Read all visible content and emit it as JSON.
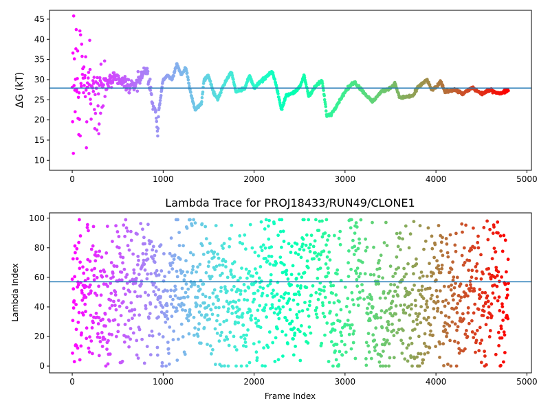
{
  "chart_data": [
    {
      "type": "scatter",
      "title": "",
      "xlabel": "",
      "ylabel": "ΔG (kT)",
      "xlim": [
        -250,
        5050
      ],
      "ylim": [
        7.5,
        47.2
      ],
      "xticks": [
        0,
        1000,
        2000,
        3000,
        4000,
        5000
      ],
      "yticks": [
        10,
        15,
        20,
        25,
        30,
        35,
        40,
        45
      ],
      "grid": false,
      "colormap": "rainbow",
      "hline": {
        "y": 27.9,
        "color": "#1f77b4"
      },
      "n_frames": 4800,
      "trend": [
        {
          "x": 0,
          "y": 28
        },
        {
          "x": 120,
          "y": 29
        },
        {
          "x": 300,
          "y": 29
        },
        {
          "x": 500,
          "y": 30
        },
        {
          "x": 650,
          "y": 28
        },
        {
          "x": 700,
          "y": 29
        },
        {
          "x": 760,
          "y": 31
        },
        {
          "x": 820,
          "y": 33
        },
        {
          "x": 860,
          "y": 27
        },
        {
          "x": 880,
          "y": 24
        },
        {
          "x": 920,
          "y": 22
        },
        {
          "x": 940,
          "y": 16
        },
        {
          "x": 950,
          "y": 22
        },
        {
          "x": 1000,
          "y": 30
        },
        {
          "x": 1050,
          "y": 31
        },
        {
          "x": 1100,
          "y": 30
        },
        {
          "x": 1150,
          "y": 34
        },
        {
          "x": 1200,
          "y": 31
        },
        {
          "x": 1250,
          "y": 33
        },
        {
          "x": 1300,
          "y": 27
        },
        {
          "x": 1350,
          "y": 22.5
        },
        {
          "x": 1420,
          "y": 24
        },
        {
          "x": 1450,
          "y": 30
        },
        {
          "x": 1500,
          "y": 31
        },
        {
          "x": 1550,
          "y": 27
        },
        {
          "x": 1600,
          "y": 25
        },
        {
          "x": 1650,
          "y": 28
        },
        {
          "x": 1700,
          "y": 30
        },
        {
          "x": 1750,
          "y": 32
        },
        {
          "x": 1800,
          "y": 27
        },
        {
          "x": 1900,
          "y": 28
        },
        {
          "x": 1950,
          "y": 31
        },
        {
          "x": 2000,
          "y": 28
        },
        {
          "x": 2100,
          "y": 30
        },
        {
          "x": 2200,
          "y": 32
        },
        {
          "x": 2250,
          "y": 28
        },
        {
          "x": 2300,
          "y": 22.5
        },
        {
          "x": 2350,
          "y": 26
        },
        {
          "x": 2450,
          "y": 27
        },
        {
          "x": 2500,
          "y": 28
        },
        {
          "x": 2550,
          "y": 31
        },
        {
          "x": 2600,
          "y": 26
        },
        {
          "x": 2700,
          "y": 29
        },
        {
          "x": 2750,
          "y": 29.5
        },
        {
          "x": 2800,
          "y": 21
        },
        {
          "x": 2850,
          "y": 21.5
        },
        {
          "x": 3000,
          "y": 27
        },
        {
          "x": 3100,
          "y": 29.5
        },
        {
          "x": 3200,
          "y": 27
        },
        {
          "x": 3300,
          "y": 24.5
        },
        {
          "x": 3400,
          "y": 27
        },
        {
          "x": 3500,
          "y": 28
        },
        {
          "x": 3550,
          "y": 29
        },
        {
          "x": 3600,
          "y": 25.5
        },
        {
          "x": 3750,
          "y": 26
        },
        {
          "x": 3800,
          "y": 28
        },
        {
          "x": 3900,
          "y": 30
        },
        {
          "x": 3950,
          "y": 27.5
        },
        {
          "x": 4000,
          "y": 28
        },
        {
          "x": 4050,
          "y": 29.5
        },
        {
          "x": 4100,
          "y": 27
        },
        {
          "x": 4200,
          "y": 27.5
        },
        {
          "x": 4300,
          "y": 26.5
        },
        {
          "x": 4400,
          "y": 28
        },
        {
          "x": 4500,
          "y": 26.5
        },
        {
          "x": 4600,
          "y": 27.5
        },
        {
          "x": 4700,
          "y": 26.5
        },
        {
          "x": 4800,
          "y": 27.5
        }
      ],
      "early_scatter_range": [
        10,
        45
      ]
    },
    {
      "type": "scatter",
      "title": "Lambda Trace for PROJ18433/RUN49/CLONE1",
      "xlabel": "Frame Index",
      "ylabel": "Lambda Index",
      "xlim": [
        -250,
        5050
      ],
      "ylim": [
        -4.6,
        103.6
      ],
      "xticks": [
        0,
        1000,
        2000,
        3000,
        4000,
        5000
      ],
      "yticks": [
        0,
        20,
        40,
        60,
        80,
        100
      ],
      "grid": false,
      "colormap": "rainbow",
      "hline": {
        "y": 57,
        "color": "#1f77b4"
      },
      "n_frames": 4800,
      "value_range": [
        0,
        99
      ],
      "clusters": [
        {
          "x": 0,
          "y": 50
        },
        {
          "x": 100,
          "y": 50
        },
        {
          "x": 250,
          "y": 50
        },
        {
          "x": 400,
          "y": 40
        },
        {
          "x": 550,
          "y": 50
        },
        {
          "x": 700,
          "y": 50
        },
        {
          "x": 850,
          "y": 70
        },
        {
          "x": 1000,
          "y": 25
        },
        {
          "x": 1150,
          "y": 55
        },
        {
          "x": 1300,
          "y": 60
        },
        {
          "x": 1400,
          "y": 40
        },
        {
          "x": 1550,
          "y": 55
        },
        {
          "x": 1700,
          "y": 50
        },
        {
          "x": 1850,
          "y": 40
        },
        {
          "x": 2000,
          "y": 50
        },
        {
          "x": 2150,
          "y": 55
        },
        {
          "x": 2300,
          "y": 50
        },
        {
          "x": 2450,
          "y": 45
        },
        {
          "x": 2550,
          "y": 60
        },
        {
          "x": 2750,
          "y": 65
        },
        {
          "x": 2900,
          "y": 25
        },
        {
          "x": 3100,
          "y": 60
        },
        {
          "x": 3300,
          "y": 40
        },
        {
          "x": 3450,
          "y": 30
        },
        {
          "x": 3600,
          "y": 50
        },
        {
          "x": 3750,
          "y": 35
        },
        {
          "x": 3900,
          "y": 40
        },
        {
          "x": 4050,
          "y": 55
        },
        {
          "x": 4200,
          "y": 40
        },
        {
          "x": 4350,
          "y": 55
        },
        {
          "x": 4500,
          "y": 45
        },
        {
          "x": 4650,
          "y": 60
        },
        {
          "x": 4750,
          "y": 40
        }
      ]
    }
  ]
}
